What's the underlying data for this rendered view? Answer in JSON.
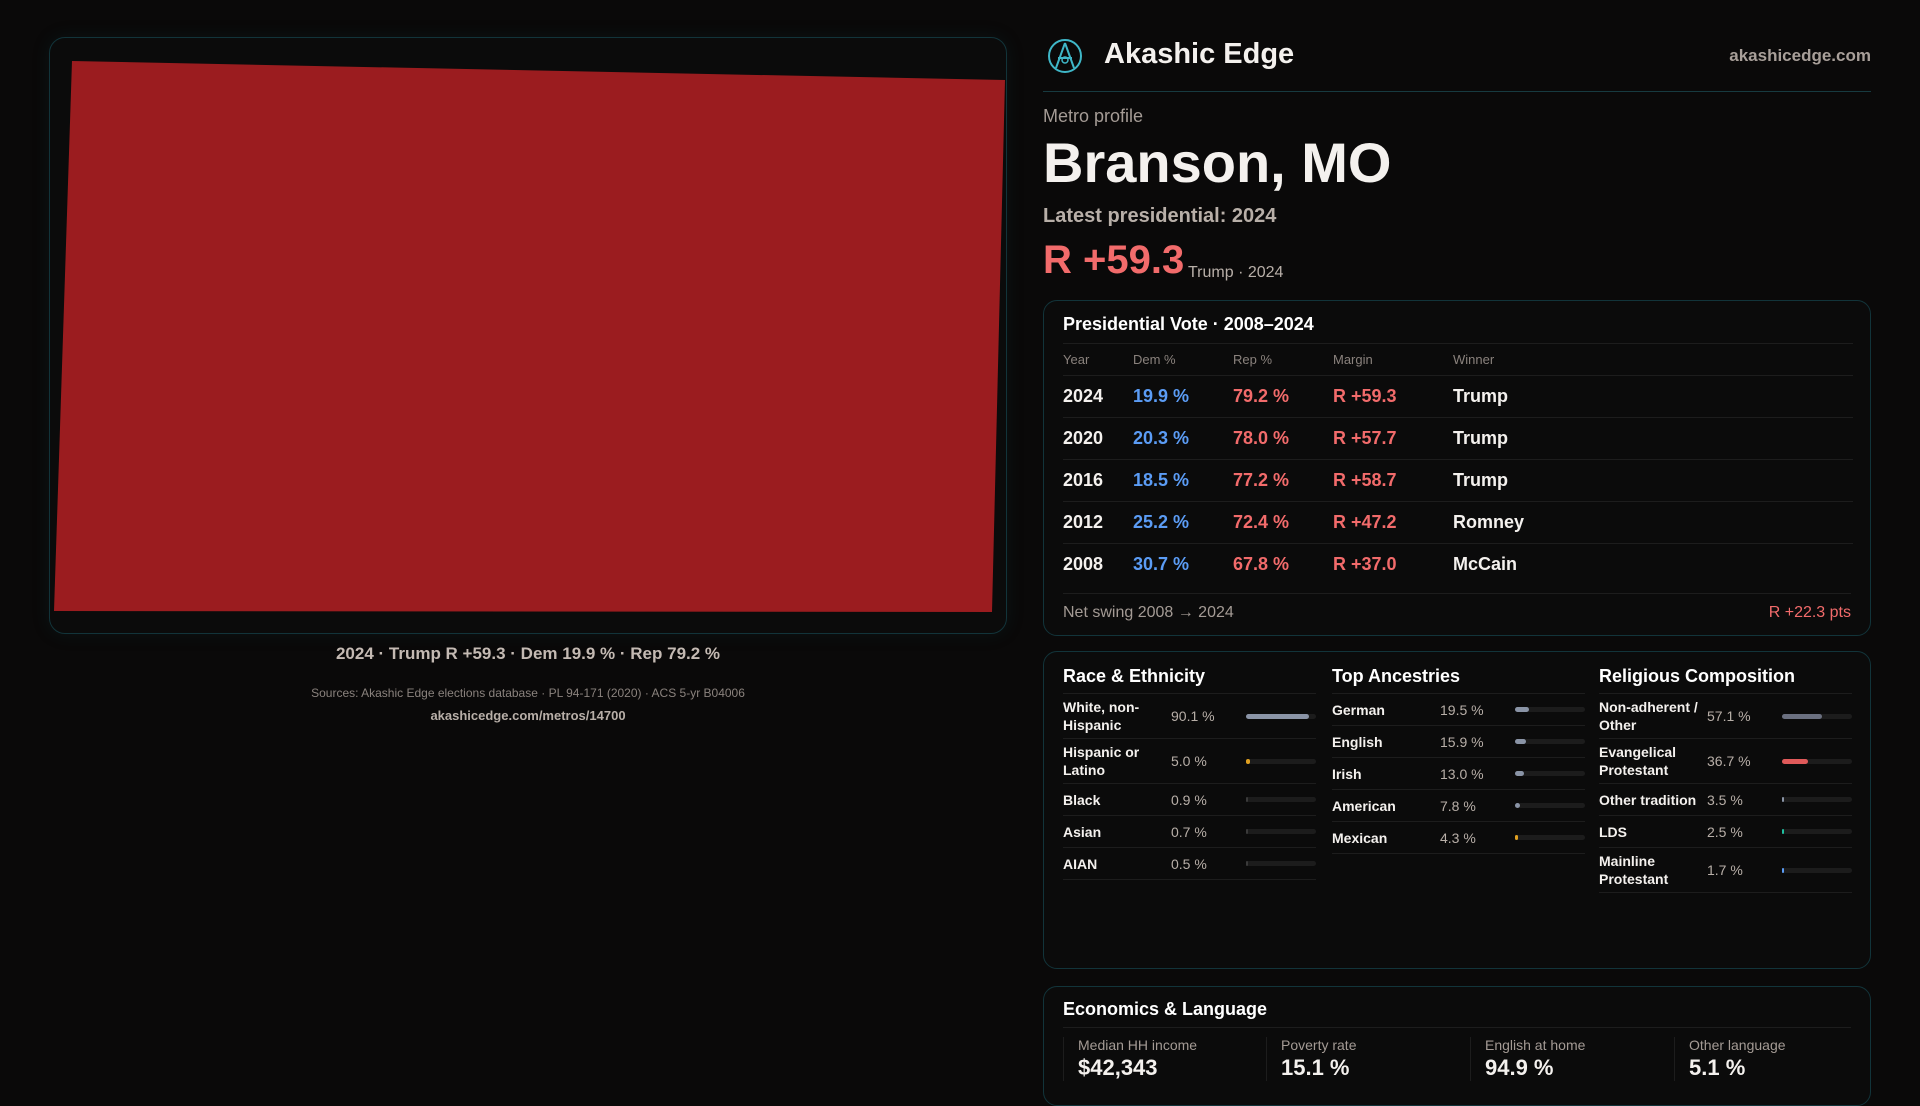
{
  "map": {
    "fill_color": "#9b1c1f",
    "caption": "2024 · Trump R +59.3 · Dem 19.9 % · Rep 79.2 %"
  },
  "header": {
    "brand": "Akashic Edge",
    "site": "akashicedge.com",
    "logo_icon": "compass-logo-icon"
  },
  "profile": {
    "kicker": "Metro profile",
    "title": "Branson, MO",
    "latest": "Latest presidential: 2024",
    "margin": "R +59.3",
    "margin_sub": "Trump · 2024"
  },
  "vote": {
    "title": "Presidential Vote · 2008–2024",
    "columns": [
      "Year",
      "Dem %",
      "Rep %",
      "Margin",
      "Winner"
    ],
    "rows": [
      [
        "2024",
        "19.9 %",
        "79.2 %",
        "R +59.3",
        "Trump"
      ],
      [
        "2020",
        "20.3 %",
        "78.0 %",
        "R +57.7",
        "Trump"
      ],
      [
        "2016",
        "18.5 %",
        "77.2 %",
        "R +58.7",
        "Trump"
      ],
      [
        "2012",
        "25.2 %",
        "72.4 %",
        "R +47.2",
        "Romney"
      ],
      [
        "2008",
        "30.7 %",
        "67.8 %",
        "R +37.0",
        "McCain"
      ]
    ],
    "swing_label": "Net swing 2008 → 2024",
    "swing_value": "R +22.3 pts"
  },
  "race": {
    "title": "Race & Ethnicity",
    "items": [
      {
        "label": "White, non-Hispanic",
        "pct": "90.1 %",
        "value": 90.1,
        "color": "#8a94a6"
      },
      {
        "label": "Hispanic or Latino",
        "pct": "5.0 %",
        "value": 5.0,
        "color": "#e0a020"
      },
      {
        "label": "Black",
        "pct": "0.9 %",
        "value": 0.9,
        "color": "#3a3a3a"
      },
      {
        "label": "Asian",
        "pct": "0.7 %",
        "value": 0.7,
        "color": "#3a3a3a"
      },
      {
        "label": "AIAN",
        "pct": "0.5 %",
        "value": 0.5,
        "color": "#3a3a3a"
      }
    ]
  },
  "ancestry": {
    "title": "Top Ancestries",
    "items": [
      {
        "label": "German",
        "pct": "19.5 %",
        "value": 19.5,
        "color": "#8a94a6"
      },
      {
        "label": "English",
        "pct": "15.9 %",
        "value": 15.9,
        "color": "#8a94a6"
      },
      {
        "label": "Irish",
        "pct": "13.0 %",
        "value": 13.0,
        "color": "#8a94a6"
      },
      {
        "label": "American",
        "pct": "7.8 %",
        "value": 7.8,
        "color": "#8a94a6"
      },
      {
        "label": "Mexican",
        "pct": "4.3 %",
        "value": 4.3,
        "color": "#e0a020"
      }
    ]
  },
  "religion": {
    "title": "Religious Composition",
    "items": [
      {
        "label": "Non-adherent / Other",
        "pct": "57.1 %",
        "value": 57.1,
        "color": "#6b7080"
      },
      {
        "label": "Evangelical Protestant",
        "pct": "36.7 %",
        "value": 36.7,
        "color": "#e05a5a"
      },
      {
        "label": "Other tradition",
        "pct": "3.5 %",
        "value": 3.5,
        "color": "#8a94a6"
      },
      {
        "label": "LDS",
        "pct": "2.5 %",
        "value": 2.5,
        "color": "#20c0a0"
      },
      {
        "label": "Mainline Protestant",
        "pct": "1.7 %",
        "value": 1.7,
        "color": "#5b9cf5"
      }
    ]
  },
  "economics": {
    "title": "Economics & Language",
    "metrics": [
      {
        "label": "Median HH income",
        "value": "$42,343"
      },
      {
        "label": "Poverty rate",
        "value": "15.1 %"
      },
      {
        "label": "English at home",
        "value": "94.9 %"
      },
      {
        "label": "Other language",
        "value": "5.1 %"
      }
    ]
  },
  "footer": {
    "sources": "Sources: Akashic Edge elections database · PL 94-171 (2020) · ACS 5-yr B04006",
    "url": "akashicedge.com/metros/14700"
  }
}
